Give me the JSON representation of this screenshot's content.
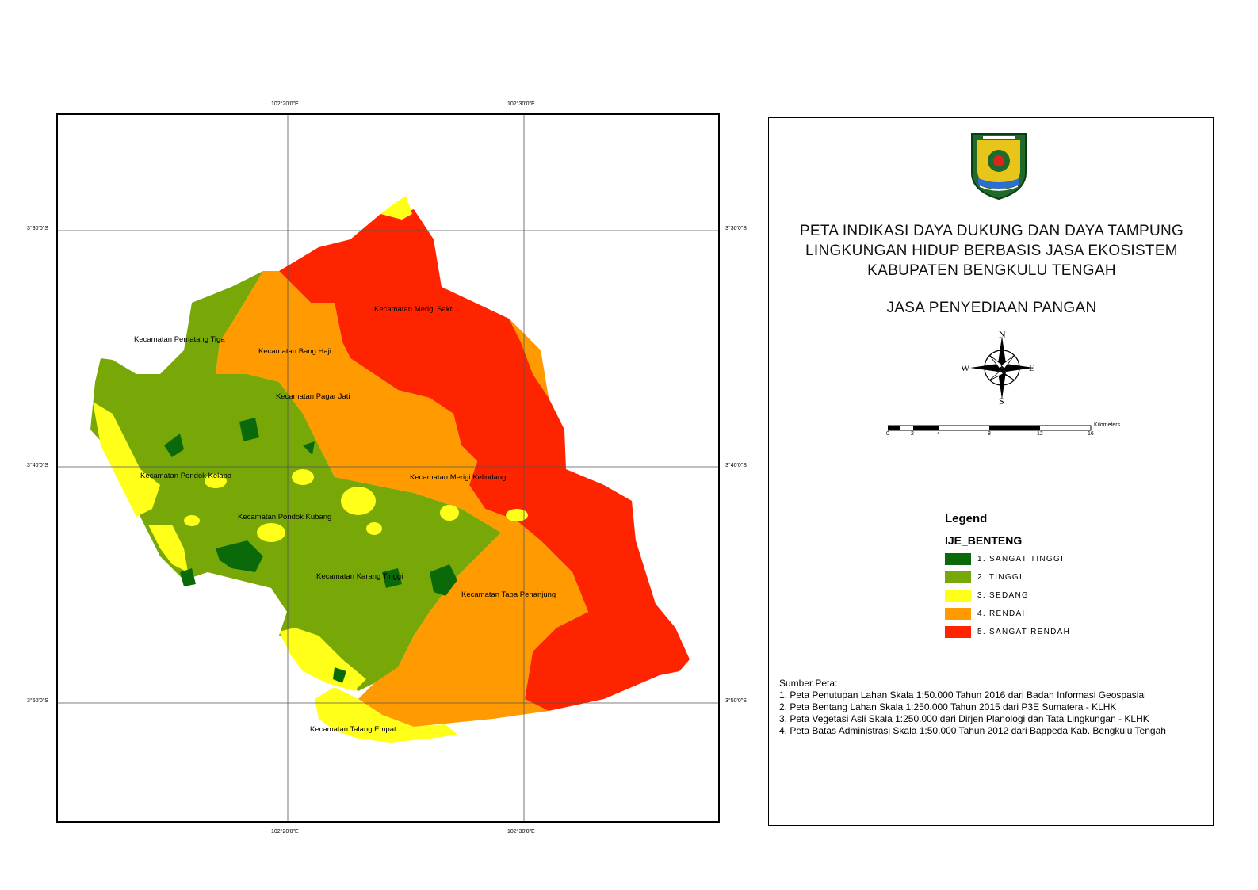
{
  "map": {
    "lon_labels_top": [
      "102°20'0\"E",
      "102°30'0\"E"
    ],
    "lon_labels_bottom": [
      "102°20'0\"E",
      "102°30'0\"E"
    ],
    "lat_labels_left": [
      "3°30'0\"S",
      "3°40'0\"S",
      "3°50'0\"S"
    ],
    "lat_labels_right": [
      "3°30'0\"S",
      "3°40'0\"S",
      "3°50'0\"S"
    ],
    "places": [
      "Kecamatan Merigi Sakti",
      "Kecamatan Pematang Tiga",
      "Kecamatan Bang Haji",
      "Kecamatan Pagar Jati",
      "Kecamatan Pondok Kelapa",
      "Kecamatan Merigi Kelindang",
      "Kecamatan Pondok Kubang",
      "Kecamatan Karang Tinggi",
      "Kecamatan Taba Penanjung",
      "Kecamatan Talang Empat"
    ],
    "colors": {
      "sangat_tinggi": "#0a6a0a",
      "tinggi": "#77a808",
      "sedang": "#ffff1a",
      "rendah": "#ff9a00",
      "sangat_rendah": "#ff2400"
    }
  },
  "panel": {
    "title_lines": [
      "PETA INDIKASI DAYA DUKUNG DAN DAYA TAMPUNG",
      "LINGKUNGAN HIDUP BERBASIS JASA EKOSISTEM",
      "KABUPATEN BENGKULU TENGAH"
    ],
    "subtitle": "JASA PENYEDIAAN PANGAN",
    "compass": {
      "n": "N",
      "s": "S",
      "e": "E",
      "w": "W"
    },
    "scale": {
      "unit": "Kilometers",
      "ticks": [
        "0",
        "2",
        "4",
        "8",
        "12",
        "16"
      ]
    },
    "legend": {
      "heading": "Legend",
      "layer": "IJE_BENTENG",
      "items": [
        {
          "label": "1. SANGAT TINGGI",
          "color": "#0a6a0a"
        },
        {
          "label": "2. TINGGI",
          "color": "#77a808"
        },
        {
          "label": "3. SEDANG",
          "color": "#ffff1a"
        },
        {
          "label": "4. RENDAH",
          "color": "#ff9a00"
        },
        {
          "label": "5. SANGAT RENDAH",
          "color": "#ff2400"
        }
      ]
    },
    "sources": {
      "heading": "Sumber Peta:",
      "items": [
        "1. Peta Penutupan Lahan Skala 1:50.000 Tahun 2016 dari Badan Informasi Geospasial",
        "2. Peta Bentang Lahan Skala 1:250.000 Tahun 2015 dari  P3E Sumatera - KLHK",
        "3. Peta Vegetasi Asli Skala 1:250.000 dari Dirjen Planologi dan Tata Lingkungan - KLHK",
        "4. Peta Batas Administrasi Skala 1:50.000 Tahun 2012 dari Bappeda Kab. Bengkulu Tengah"
      ]
    }
  }
}
